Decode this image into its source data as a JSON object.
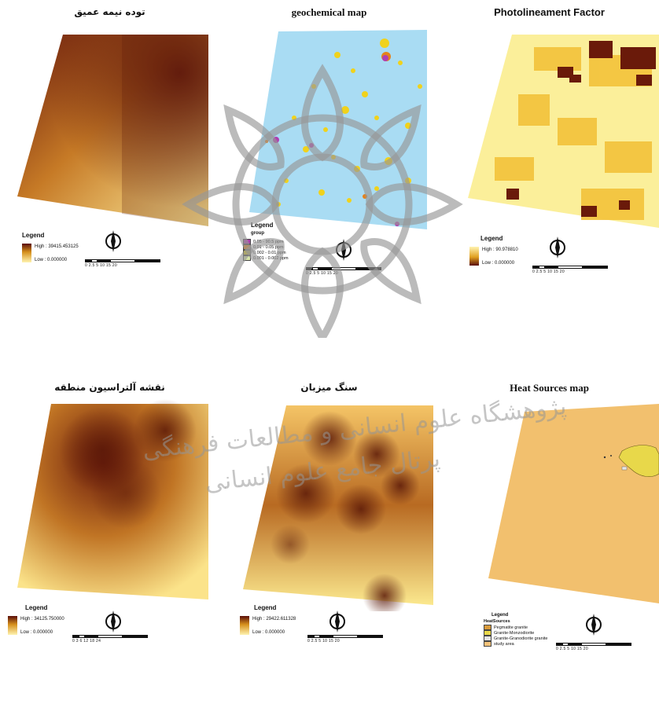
{
  "panels": [
    {
      "title": "توده نیمه عمیق",
      "legend_title": "Legend",
      "high": "High : 39415.453125",
      "low": "Low : 0.000000",
      "ramp": "rev",
      "scale": "0  2.5  5      10      15      20"
    },
    {
      "title": "geochemical map",
      "legend_title": "Legend",
      "legend_sub": "group",
      "classes": [
        {
          "label": "0.05 - 90.5 ppm",
          "color": "#b03fb0"
        },
        {
          "label": "0.01 - 0.05 ppm",
          "color": "#e5821b"
        },
        {
          "label": "0.002 - 0.01 ppm",
          "color": "#d8c21a"
        },
        {
          "label": "0.001 - 0.002 ppm",
          "color": "#d8e6a8"
        }
      ],
      "scale": "0  2.5  5      10      15      20"
    },
    {
      "title": "Photolineament Factor",
      "legend_title": "Legend",
      "high": "High : 90.978810",
      "low": "Low : 0.000000",
      "ramp": "fwd",
      "scale": "0  2.5  5      10      15      20"
    },
    {
      "title": "نقشه آلتراسیون منطقه",
      "legend_title": "Legend",
      "high": "High : 34125.750000",
      "low": "Low : 0.000000",
      "ramp": "rev",
      "scale": "0   3   6      12      18      24"
    },
    {
      "title": "سنگ میزبان",
      "legend_title": "Legend",
      "high": "High : 29422.611328",
      "low": "Low : 0.000000",
      "ramp": "rev",
      "scale": "0  2.5  5      10      15      20"
    },
    {
      "title": "Heat Sources map",
      "legend_title": "Legend",
      "legend_sub": "HeatSources",
      "classes": [
        {
          "label": "Pegmatite granite",
          "color": "#d99a3a"
        },
        {
          "label": "Granite-Monzodiorite",
          "color": "#e8d84a"
        },
        {
          "label": "Granite-Granodiorite granite",
          "color": "#e6e6e6"
        },
        {
          "label": "study area",
          "color": "#f3c27a"
        }
      ],
      "scale": "0  2.5  5      10      15      20"
    }
  ],
  "watermark": {
    "line1": "پژوهشگاه علوم انسانی و مطالعات فرهنگی",
    "line2": "پرتال جامع علوم انسانی"
  }
}
